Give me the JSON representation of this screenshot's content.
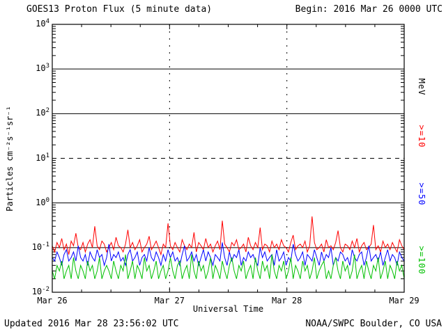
{
  "header": {
    "title": "GOES13 Proton Flux (5 minute data)",
    "begin": "Begin: 2016 Mar 26 0000 UTC"
  },
  "footer": {
    "updated": "Updated 2016 Mar 28 23:56:02 UTC",
    "source": "NOAA/SWPC Boulder, CO USA"
  },
  "chart_data": {
    "type": "line",
    "title": "GOES13 Proton Flux (5 minute data)",
    "xlabel": "Universal Time",
    "ylabel": "Particles cm⁻²s⁻¹sr⁻¹",
    "y_scale": "log",
    "ylim": [
      0.01,
      10000
    ],
    "y_tick_exponents": [
      4,
      3,
      2,
      1,
      0,
      -1,
      -2
    ],
    "x_tick_labels": [
      "Mar 26",
      "Mar 27",
      "Mar 28",
      "Mar 29"
    ],
    "x_days_total": 3,
    "gridlines": {
      "solid_y": [
        1000,
        100,
        1,
        0.1
      ],
      "dashed_y": [
        10
      ],
      "dashed_x_day_indices": [
        1,
        2
      ]
    },
    "right_axis_labels": [
      {
        "text": "MeV",
        "color": "#000000"
      },
      {
        "text": ">=10",
        "color": "#ff0000"
      },
      {
        "text": ">=50",
        "color": "#0000ff"
      },
      {
        "text": ">=100",
        "color": "#00c000"
      }
    ],
    "series": [
      {
        "name": ">=10 MeV",
        "color": "#ff0000",
        "approx_mean": 0.11,
        "values": [
          0.11,
          0.08,
          0.13,
          0.1,
          0.16,
          0.09,
          0.12,
          0.07,
          0.14,
          0.11,
          0.21,
          0.1,
          0.09,
          0.13,
          0.08,
          0.12,
          0.15,
          0.1,
          0.3,
          0.11,
          0.09,
          0.14,
          0.12,
          0.08,
          0.1,
          0.13,
          0.09,
          0.17,
          0.11,
          0.1,
          0.08,
          0.12,
          0.25,
          0.1,
          0.13,
          0.09,
          0.11,
          0.15,
          0.08,
          0.1,
          0.12,
          0.18,
          0.09,
          0.11,
          0.14,
          0.1,
          0.07,
          0.12,
          0.1,
          0.35,
          0.11,
          0.09,
          0.13,
          0.1,
          0.08,
          0.15,
          0.11,
          0.09,
          0.12,
          0.1,
          0.22,
          0.08,
          0.13,
          0.11,
          0.09,
          0.16,
          0.1,
          0.12,
          0.08,
          0.11,
          0.14,
          0.09,
          0.4,
          0.12,
          0.1,
          0.08,
          0.13,
          0.11,
          0.15,
          0.09,
          0.1,
          0.12,
          0.08,
          0.17,
          0.11,
          0.09,
          0.13,
          0.1,
          0.28,
          0.09,
          0.12,
          0.11,
          0.08,
          0.14,
          0.1,
          0.12,
          0.09,
          0.15,
          0.11,
          0.1,
          0.08,
          0.13,
          0.19,
          0.09,
          0.11,
          0.12,
          0.1,
          0.14,
          0.08,
          0.11,
          0.5,
          0.13,
          0.09,
          0.1,
          0.12,
          0.08,
          0.15,
          0.1,
          0.11,
          0.09,
          0.13,
          0.24,
          0.1,
          0.08,
          0.12,
          0.11,
          0.09,
          0.14,
          0.1,
          0.16,
          0.08,
          0.11,
          0.13,
          0.09,
          0.1,
          0.12,
          0.32,
          0.09,
          0.11,
          0.08,
          0.14,
          0.1,
          0.12,
          0.09,
          0.13,
          0.1,
          0.08,
          0.15,
          0.11,
          0.09
        ]
      },
      {
        "name": ">=50 MeV",
        "color": "#0000ff",
        "approx_mean": 0.06,
        "values": [
          0.06,
          0.05,
          0.08,
          0.06,
          0.04,
          0.07,
          0.09,
          0.05,
          0.06,
          0.08,
          0.05,
          0.11,
          0.06,
          0.05,
          0.07,
          0.04,
          0.08,
          0.06,
          0.05,
          0.09,
          0.06,
          0.07,
          0.04,
          0.06,
          0.12,
          0.05,
          0.07,
          0.06,
          0.08,
          0.05,
          0.06,
          0.04,
          0.07,
          0.09,
          0.05,
          0.06,
          0.08,
          0.04,
          0.06,
          0.07,
          0.05,
          0.1,
          0.06,
          0.05,
          0.08,
          0.06,
          0.04,
          0.07,
          0.05,
          0.09,
          0.06,
          0.08,
          0.05,
          0.06,
          0.04,
          0.07,
          0.11,
          0.05,
          0.06,
          0.08,
          0.05,
          0.07,
          0.04,
          0.06,
          0.09,
          0.05,
          0.08,
          0.06,
          0.04,
          0.07,
          0.06,
          0.05,
          0.13,
          0.06,
          0.04,
          0.08,
          0.05,
          0.07,
          0.06,
          0.09,
          0.04,
          0.06,
          0.05,
          0.08,
          0.06,
          0.07,
          0.05,
          0.04,
          0.1,
          0.06,
          0.08,
          0.05,
          0.06,
          0.07,
          0.04,
          0.09,
          0.05,
          0.06,
          0.08,
          0.04,
          0.06,
          0.05,
          0.12,
          0.07,
          0.05,
          0.06,
          0.08,
          0.04,
          0.07,
          0.06,
          0.05,
          0.09,
          0.06,
          0.04,
          0.08,
          0.05,
          0.07,
          0.06,
          0.1,
          0.04,
          0.06,
          0.05,
          0.08,
          0.07,
          0.05,
          0.06,
          0.04,
          0.09,
          0.06,
          0.05,
          0.07,
          0.08,
          0.04,
          0.06,
          0.11,
          0.05,
          0.06,
          0.07,
          0.05,
          0.08,
          0.04,
          0.06,
          0.09,
          0.05,
          0.07,
          0.06,
          0.04,
          0.08,
          0.06,
          0.05
        ]
      },
      {
        "name": ">=100 MeV",
        "color": "#00c000",
        "approx_mean": 0.035,
        "values": [
          0.03,
          0.02,
          0.04,
          0.03,
          0.05,
          0.02,
          0.03,
          0.04,
          0.02,
          0.06,
          0.03,
          0.02,
          0.04,
          0.03,
          0.02,
          0.05,
          0.03,
          0.04,
          0.02,
          0.03,
          0.06,
          0.02,
          0.03,
          0.04,
          0.03,
          0.02,
          0.05,
          0.03,
          0.02,
          0.04,
          0.03,
          0.07,
          0.02,
          0.03,
          0.05,
          0.02,
          0.04,
          0.03,
          0.02,
          0.06,
          0.03,
          0.04,
          0.02,
          0.03,
          0.05,
          0.02,
          0.03,
          0.04,
          0.02,
          0.03,
          0.06,
          0.03,
          0.02,
          0.04,
          0.05,
          0.02,
          0.03,
          0.04,
          0.02,
          0.07,
          0.03,
          0.02,
          0.05,
          0.03,
          0.04,
          0.02,
          0.03,
          0.06,
          0.02,
          0.04,
          0.03,
          0.02,
          0.05,
          0.03,
          0.02,
          0.04,
          0.06,
          0.03,
          0.02,
          0.04,
          0.03,
          0.05,
          0.02,
          0.03,
          0.04,
          0.02,
          0.06,
          0.03,
          0.02,
          0.05,
          0.03,
          0.04,
          0.02,
          0.07,
          0.03,
          0.02,
          0.04,
          0.03,
          0.05,
          0.02,
          0.03,
          0.06,
          0.02,
          0.04,
          0.03,
          0.02,
          0.05,
          0.03,
          0.04,
          0.02,
          0.03,
          0.06,
          0.02,
          0.03,
          0.04,
          0.05,
          0.02,
          0.03,
          0.02,
          0.04,
          0.06,
          0.03,
          0.02,
          0.05,
          0.03,
          0.04,
          0.02,
          0.03,
          0.07,
          0.02,
          0.03,
          0.04,
          0.02,
          0.05,
          0.03,
          0.02,
          0.04,
          0.03,
          0.06,
          0.02,
          0.03,
          0.05,
          0.02,
          0.04,
          0.03,
          0.02,
          0.05,
          0.03,
          0.04,
          0.02
        ]
      }
    ]
  }
}
